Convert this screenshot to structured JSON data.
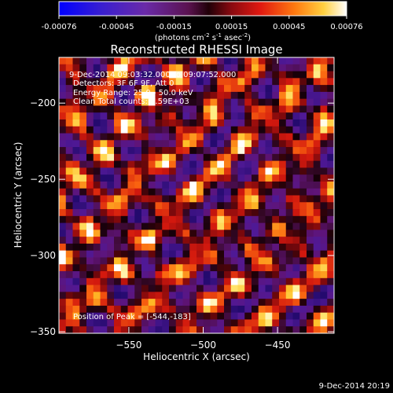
{
  "chart_data": {
    "type": "heatmap",
    "title": "Reconstructed RHESSI Image",
    "xlabel": "Heliocentric X (arcsec)",
    "ylabel": "Heliocentric Y (arcsec)",
    "xlim": [
      -597,
      -412
    ],
    "ylim": [
      -351,
      -170
    ],
    "xticks": [
      -550,
      -500,
      -450
    ],
    "yticks": [
      -200,
      -250,
      -300,
      -350
    ],
    "colorbar": {
      "range": [
        -0.00076,
        0.00076
      ],
      "ticks": [
        "-0.00076",
        "-0.00045",
        "-0.00015",
        "0.00015",
        "0.00045",
        "0.00076"
      ],
      "label_parts": [
        "(photons cm",
        "-2",
        " s",
        "-1",
        " asec",
        "-2",
        ")"
      ]
    },
    "annotations": [
      "9-Dec-2014 09:03:32.000 to 09:07:52.000",
      "Detectors: 3F 6F 9F, Att 0",
      "Energy Range: 25.0 - 50.0 keV",
      "Clean     Total counts: 2.59E+03"
    ],
    "peak_label": "Position of Peak = [-544,-183]",
    "colormap_name": "heat (black-purple-red-yellow-white)"
  },
  "footer": {
    "timestamp": "9-Dec-2014 20:19"
  }
}
